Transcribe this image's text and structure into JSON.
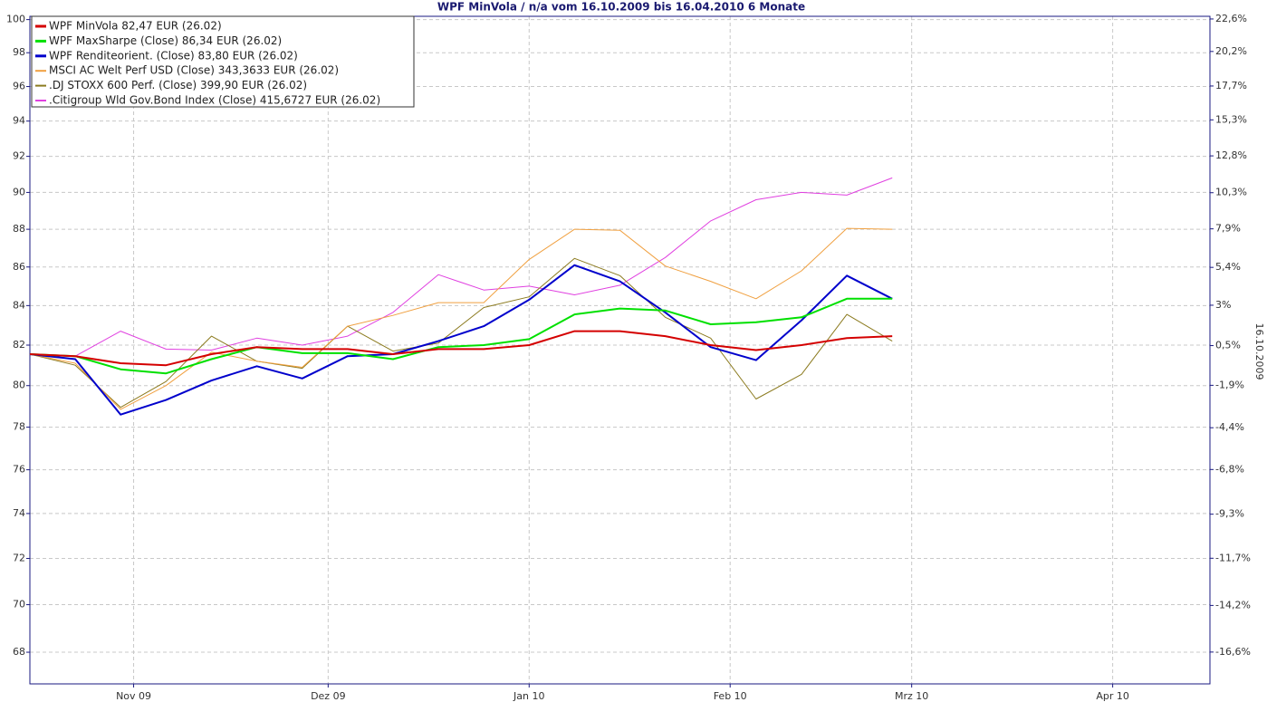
{
  "chart_data": {
    "type": "line",
    "title": "WPF MinVola / n/a vom 16.10.2009 bis 16.04.2010 6 Monate",
    "y2_label": "16.10.2009",
    "x": [
      "2009-10-16",
      "2009-10-23",
      "2009-10-30",
      "2009-11-06",
      "2009-11-13",
      "2009-11-20",
      "2009-11-27",
      "2009-12-04",
      "2009-12-11",
      "2009-12-18",
      "2009-12-25",
      "2010-01-01",
      "2010-01-08",
      "2010-01-15",
      "2010-01-22",
      "2010-01-29",
      "2010-02-05",
      "2010-02-12",
      "2010-02-19",
      "2010-02-26"
    ],
    "xlim": [
      "2009-10-16",
      "2010-04-16"
    ],
    "xticks": [
      {
        "value": "2009-11-01",
        "label": "Nov 09"
      },
      {
        "value": "2009-12-01",
        "label": "Dez 09"
      },
      {
        "value": "2010-01-01",
        "label": "Jan 10"
      },
      {
        "value": "2010-02-01",
        "label": "Feb 10"
      },
      {
        "value": "2010-03-01",
        "label": "Mrz 10"
      },
      {
        "value": "2010-04-01",
        "label": "Apr 10"
      }
    ],
    "ylim": [
      66.7,
      100.2
    ],
    "log_scale": true,
    "yticks": [
      68,
      70,
      72,
      74,
      76,
      78,
      80,
      82,
      84,
      86,
      88,
      90,
      92,
      94,
      96,
      98,
      100
    ],
    "y2lim": [
      -18.2,
      22.8
    ],
    "y2ticks": [
      {
        "value": -16.6,
        "label": "-16,6%"
      },
      {
        "value": -14.2,
        "label": "-14,2%"
      },
      {
        "value": -11.7,
        "label": "-11,7%"
      },
      {
        "value": -9.3,
        "label": "-9,3%"
      },
      {
        "value": -6.8,
        "label": "-6,8%"
      },
      {
        "value": -4.4,
        "label": "-4,4%"
      },
      {
        "value": -1.9,
        "label": "-1,9%"
      },
      {
        "value": 0.5,
        "label": "0,5%"
      },
      {
        "value": 3,
        "label": "3%"
      },
      {
        "value": 5.4,
        "label": "5,4%"
      },
      {
        "value": 7.9,
        "label": "7,9%"
      },
      {
        "value": 10.3,
        "label": "10,3%"
      },
      {
        "value": 12.8,
        "label": "12,8%"
      },
      {
        "value": 15.3,
        "label": "15,3%"
      },
      {
        "value": 17.7,
        "label": "17,7%"
      },
      {
        "value": 20.2,
        "label": "20,2%"
      },
      {
        "value": 22.6,
        "label": "22,6%"
      }
    ],
    "grid": true,
    "legend": "top-left",
    "series": [
      {
        "name": "WPF MinVola 82,47 EUR (26.02)",
        "color": "#d40000",
        "width": 2,
        "values": [
          81.55,
          81.45,
          81.1,
          81.0,
          81.55,
          81.9,
          81.8,
          81.8,
          81.55,
          81.8,
          81.8,
          82.0,
          82.7,
          82.7,
          82.45,
          82.0,
          81.75,
          82.0,
          82.35,
          82.45
        ]
      },
      {
        "name": "WPF MaxSharpe (Close) 86,34 EUR (26.02)",
        "color": "#00e000",
        "width": 2,
        "values": [
          81.55,
          81.45,
          80.8,
          80.6,
          81.3,
          81.9,
          81.6,
          81.6,
          81.3,
          81.9,
          82.0,
          82.3,
          83.55,
          83.85,
          83.75,
          83.05,
          83.15,
          83.4,
          84.35,
          84.35
        ]
      },
      {
        "name": "WPF Renditeorient. (Close) 83,80 EUR (26.02)",
        "color": "#0000cc",
        "width": 2,
        "values": [
          81.55,
          81.3,
          78.6,
          79.3,
          80.25,
          80.95,
          80.35,
          81.45,
          81.55,
          82.2,
          82.95,
          84.3,
          86.1,
          85.25,
          83.65,
          81.9,
          81.25,
          83.25,
          85.55,
          84.35
        ]
      },
      {
        "name": "MSCI AC Welt Perf USD (Close) 343,3633 EUR (26.02)",
        "color": "#f0a040",
        "width": 1,
        "values": [
          81.55,
          81.1,
          78.85,
          80.0,
          81.65,
          81.2,
          80.9,
          82.95,
          83.5,
          84.15,
          84.15,
          86.4,
          88.0,
          87.95,
          86.05,
          85.25,
          84.35,
          85.8,
          88.05,
          88.0
        ]
      },
      {
        "name": ".DJ STOXX 600 Perf. (Close) 399,90 EUR (26.02)",
        "color": "#8b7a1e",
        "width": 1,
        "values": [
          81.55,
          81.0,
          78.95,
          80.2,
          82.45,
          81.2,
          80.85,
          82.95,
          81.7,
          82.1,
          83.9,
          84.45,
          86.45,
          85.55,
          83.4,
          82.35,
          79.35,
          80.55,
          83.55,
          82.2
        ]
      },
      {
        "name": ".Citigroup Wld Gov.Bond Index (Close) 415,6727 EUR (26.02)",
        "color": "#e040e0",
        "width": 1,
        "values": [
          81.55,
          81.45,
          82.7,
          81.8,
          81.75,
          82.35,
          82.0,
          82.45,
          83.65,
          85.6,
          84.8,
          85.0,
          84.55,
          85.05,
          86.5,
          88.45,
          89.6,
          90.0,
          89.85,
          90.8
        ]
      }
    ]
  }
}
